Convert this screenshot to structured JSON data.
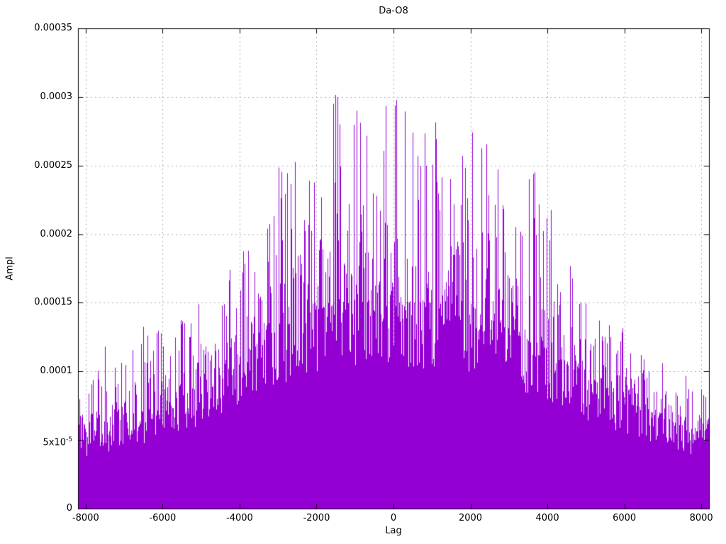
{
  "chart_data": {
    "type": "line",
    "style": "impulses",
    "title": "Da-O8",
    "xlabel": "Lag",
    "ylabel": "Ampl",
    "xlim": [
      -8200,
      8200
    ],
    "ylim": [
      0,
      0.00035
    ],
    "grid": true,
    "grid_color": "#b0b0b0",
    "border_color": "#000000",
    "line_color": "#9400D3",
    "noise_seed": 7,
    "x_ticks": [
      {
        "value": -8000,
        "label": "-8000"
      },
      {
        "value": -6000,
        "label": "-6000"
      },
      {
        "value": -4000,
        "label": "-4000"
      },
      {
        "value": -2000,
        "label": "-2000"
      },
      {
        "value": 0,
        "label": "0"
      },
      {
        "value": 2000,
        "label": "2000"
      },
      {
        "value": 4000,
        "label": "4000"
      },
      {
        "value": 6000,
        "label": "6000"
      },
      {
        "value": 8000,
        "label": "8000"
      }
    ],
    "y_ticks": [
      {
        "value": 0,
        "label": "0"
      },
      {
        "value": 5e-05,
        "label": "5x10^-5"
      },
      {
        "value": 0.0001,
        "label": "0.0001"
      },
      {
        "value": 0.00015,
        "label": "0.00015"
      },
      {
        "value": 0.0002,
        "label": "0.0002"
      },
      {
        "value": 0.00025,
        "label": "0.00025"
      },
      {
        "value": 0.0003,
        "label": "0.0003"
      },
      {
        "value": 0.00035,
        "label": "0.00035"
      }
    ],
    "envelope": {
      "lag": [
        -8200,
        -8000,
        -7500,
        -7000,
        -6500,
        -6000,
        -5500,
        -5000,
        -4500,
        -4000,
        -3500,
        -3000,
        -2500,
        -2000,
        -1500,
        -1000,
        -500,
        -250,
        0,
        250,
        500,
        1000,
        1500,
        2000,
        2500,
        3000,
        3500,
        3700,
        4000,
        4500,
        5000,
        5500,
        6000,
        6500,
        7000,
        7500,
        8000,
        8200
      ],
      "peak": [
        0.0001,
        8e-05,
        0.00012,
        0.000105,
        0.000135,
        0.000135,
        0.00014,
        0.000155,
        0.000165,
        0.000195,
        0.000185,
        0.000255,
        0.00026,
        0.000245,
        0.000307,
        0.00029,
        0.0003,
        0.0003,
        0.0003,
        0.00031,
        0.00029,
        0.000293,
        0.00026,
        0.000281,
        0.00027,
        0.00024,
        0.000242,
        0.000265,
        0.00024,
        0.00019,
        0.00015,
        0.000145,
        0.00013,
        0.000112,
        0.00011,
        0.0001,
        9e-05,
        0.0001
      ],
      "dense": [
        6e-05,
        5.5e-05,
        5.8e-05,
        6.5e-05,
        7e-05,
        7.5e-05,
        8.2e-05,
        9e-05,
        0.0001,
        0.00011,
        0.00012,
        0.00013,
        0.000138,
        0.000145,
        0.000148,
        0.00015,
        0.00015,
        0.00015,
        0.00015,
        0.00015,
        0.00015,
        0.00015,
        0.000148,
        0.000145,
        0.000138,
        0.00013,
        0.000122,
        0.00012,
        0.000115,
        0.000105,
        9.5e-05,
        8.8e-05,
        8e-05,
        7.2e-05,
        6.5e-05,
        6e-05,
        5.5e-05,
        6e-05
      ]
    }
  }
}
